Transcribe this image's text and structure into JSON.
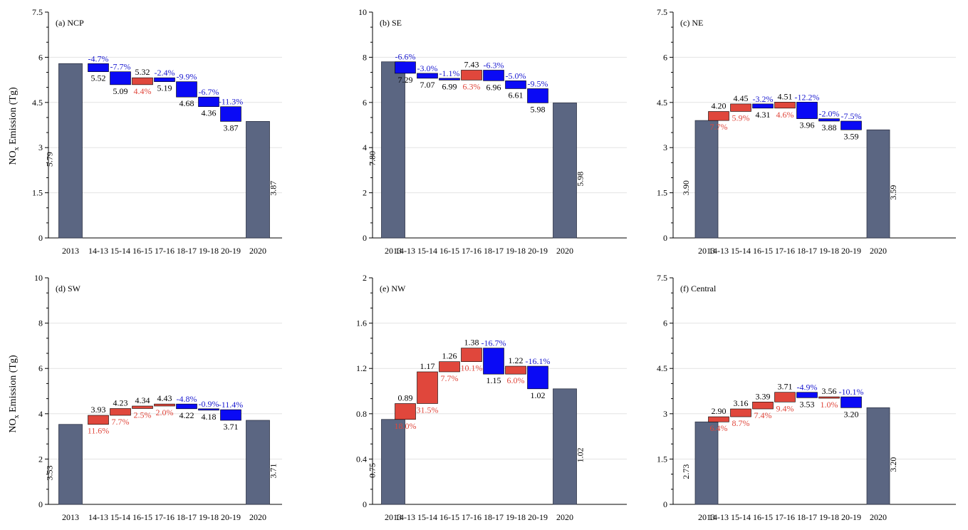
{
  "figure": {
    "ylabel_main": "NO",
    "ylabel_sub": "x",
    "ylabel_rest": " Emission (Tg)",
    "colors": {
      "bar_end": "#5b6682",
      "increase": "#e0473c",
      "decrease": "#0a0af5",
      "increase_text": "#e0473c",
      "decrease_text": "#1a1ad0",
      "grid": "#e3e3e3"
    }
  },
  "chart_data": [
    {
      "type": "bar",
      "title": "(a) NCP",
      "ylim": [
        0,
        7.5
      ],
      "yticks": [
        "0",
        "1.5",
        "3",
        "4.5",
        "6",
        "7.5"
      ],
      "categories": [
        "2013",
        "14-13",
        "15-14",
        "16-15",
        "17-16",
        "18-17",
        "19-18",
        "20-19",
        "2020"
      ],
      "levels": [
        5.79,
        5.52,
        5.09,
        5.32,
        5.19,
        4.68,
        4.36,
        3.87,
        3.87
      ],
      "level_labels": [
        "5.79",
        "5.52",
        "5.09",
        "5.32",
        "5.19",
        "4.68",
        "4.36",
        "3.87",
        "3.87"
      ],
      "change_labels": [
        "",
        "-4.7%",
        "-7.7%",
        "4.4%",
        "-2.4%",
        "-9.9%",
        "-6.7%",
        "-11.3%",
        ""
      ]
    },
    {
      "type": "bar",
      "title": "(b) SE",
      "ylim": [
        0,
        10
      ],
      "yticks": [
        "0",
        "2",
        "4",
        "6",
        "8",
        "10"
      ],
      "categories": [
        "2013",
        "14-13",
        "15-14",
        "16-15",
        "17-16",
        "18-17",
        "19-18",
        "20-19",
        "2020"
      ],
      "levels": [
        7.8,
        7.29,
        7.07,
        6.99,
        7.43,
        6.96,
        6.61,
        5.98,
        5.98
      ],
      "level_labels": [
        "7.80",
        "7.29",
        "7.07",
        "6.99",
        "7.43",
        "6.96",
        "6.61",
        "5.98",
        "5.98"
      ],
      "change_labels": [
        "",
        "-6.6%",
        "-3.0%",
        "-1.1%",
        "6.3%",
        "-6.3%",
        "-5.0%",
        "-9.5%",
        ""
      ]
    },
    {
      "type": "bar",
      "title": "(c) NE",
      "ylim": [
        0,
        7.5
      ],
      "yticks": [
        "0",
        "1.5",
        "3",
        "4.5",
        "6",
        "7.5"
      ],
      "categories": [
        "2013",
        "14-13",
        "15-14",
        "16-15",
        "17-16",
        "18-17",
        "19-18",
        "20-19",
        "2020"
      ],
      "levels": [
        3.9,
        4.2,
        4.45,
        4.31,
        4.51,
        3.96,
        3.88,
        3.59,
        3.59
      ],
      "level_labels": [
        "3.90",
        "4.20",
        "4.45",
        "4.31",
        "4.51",
        "3.96",
        "3.88",
        "3.59",
        "3.59"
      ],
      "change_labels": [
        "",
        "7.7%",
        "5.9%",
        "-3.2%",
        "4.6%",
        "-12.2%",
        "-2.0%",
        "-7.5%",
        ""
      ]
    },
    {
      "type": "bar",
      "title": "(d) SW",
      "ylim": [
        0,
        10
      ],
      "yticks": [
        "0",
        "2",
        "4",
        "6",
        "8",
        "10"
      ],
      "categories": [
        "2013",
        "14-13",
        "15-14",
        "16-15",
        "17-16",
        "18-17",
        "19-18",
        "20-19",
        "2020"
      ],
      "levels": [
        3.53,
        3.93,
        4.23,
        4.34,
        4.43,
        4.22,
        4.18,
        3.71,
        3.71
      ],
      "level_labels": [
        "3.53",
        "3.93",
        "4.23",
        "4.34",
        "4.43",
        "4.22",
        "4.18",
        "3.71",
        "3.71"
      ],
      "change_labels": [
        "",
        "11.6%",
        "7.7%",
        "2.5%",
        "2.0%",
        "-4.8%",
        "-0.9%",
        "-11.4%",
        ""
      ]
    },
    {
      "type": "bar",
      "title": "(e) NW",
      "ylim": [
        0,
        2
      ],
      "yticks": [
        "0",
        "0.4",
        "0.8",
        "1.2",
        "1.6",
        "2"
      ],
      "categories": [
        "2013",
        "14-13",
        "15-14",
        "16-15",
        "17-16",
        "18-17",
        "19-18",
        "20-19",
        "2020"
      ],
      "levels": [
        0.75,
        0.89,
        1.17,
        1.26,
        1.38,
        1.15,
        1.22,
        1.02,
        1.02
      ],
      "level_labels": [
        "0.75",
        "0.89",
        "1.17",
        "1.26",
        "1.38",
        "1.15",
        "1.22",
        "1.02",
        "1.02"
      ],
      "change_labels": [
        "",
        "18.0%",
        "31.5%",
        "7.7%",
        "10.1%",
        "-16.7%",
        "6.0%",
        "-16.1%",
        ""
      ]
    },
    {
      "type": "bar",
      "title": "(f) Central",
      "ylim": [
        0,
        7.5
      ],
      "yticks": [
        "0",
        "1.5",
        "3",
        "4.5",
        "6",
        "7.5"
      ],
      "categories": [
        "2013",
        "14-13",
        "15-14",
        "16-15",
        "17-16",
        "18-17",
        "19-18",
        "20-19",
        "2020"
      ],
      "levels": [
        2.73,
        2.9,
        3.16,
        3.39,
        3.71,
        3.53,
        3.56,
        3.2,
        3.2
      ],
      "level_labels": [
        "2.73",
        "2.90",
        "3.16",
        "3.39",
        "3.71",
        "3.53",
        "3.56",
        "3.20",
        "3.20"
      ],
      "change_labels": [
        "",
        "6.4%",
        "8.7%",
        "7.4%",
        "9.4%",
        "-4.9%",
        "1.0%",
        "-10.1%",
        ""
      ]
    }
  ]
}
